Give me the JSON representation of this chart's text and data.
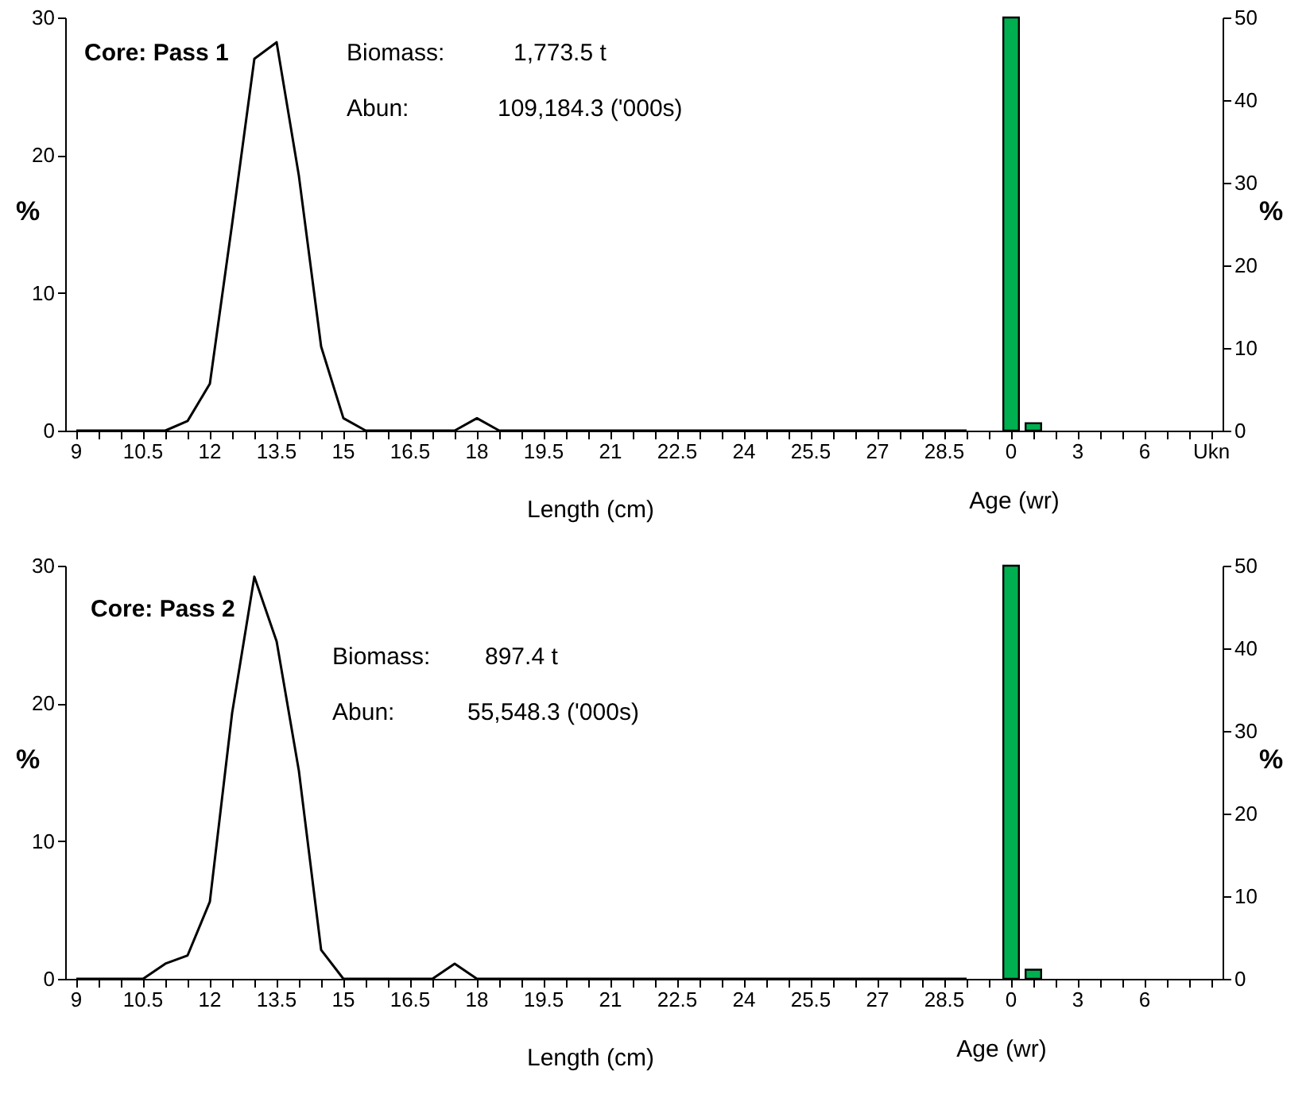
{
  "chart_data": [
    {
      "type": "line",
      "categories": [
        "9",
        null,
        null,
        "10.5",
        null,
        null,
        "12",
        null,
        null,
        "13.5",
        null,
        null,
        "15",
        null,
        null,
        "16.5",
        null,
        null,
        "18",
        null,
        null,
        "19.5",
        null,
        null,
        "21",
        null,
        null,
        "22.5",
        null,
        null,
        "24",
        null,
        null,
        "25.5",
        null,
        null,
        "27",
        null,
        null,
        "28.5",
        null,
        null,
        "0",
        null,
        null,
        "3",
        null,
        null,
        "6",
        null,
        null,
        "Ukn"
      ],
      "series": [
        {
          "color": "#000000",
          "values": [
            0,
            0,
            0,
            0,
            0,
            0.7,
            3.4,
            15,
            27,
            28.2,
            18.5,
            6.1,
            0.9,
            0,
            0,
            0,
            0,
            0,
            0.9,
            0,
            0,
            0,
            0,
            0,
            0,
            0,
            0,
            0,
            0,
            0,
            0,
            0,
            0,
            0,
            0,
            0,
            0,
            0,
            0,
            0,
            0,
            null,
            null,
            null,
            null,
            null,
            null,
            null,
            null,
            null,
            null,
            null
          ]
        },
        {
          "type": "bar",
          "axis": "y2",
          "color": "#00b050",
          "values": [
            null,
            null,
            null,
            null,
            null,
            null,
            null,
            null,
            null,
            null,
            null,
            null,
            null,
            null,
            null,
            null,
            null,
            null,
            null,
            null,
            null,
            null,
            null,
            null,
            null,
            null,
            null,
            null,
            null,
            null,
            null,
            null,
            null,
            null,
            null,
            null,
            null,
            null,
            null,
            null,
            null,
            null,
            50,
            0.9,
            null,
            null,
            null,
            null,
            null,
            null,
            null,
            null
          ]
        }
      ],
      "ylim": [
        0,
        30
      ],
      "yticks": [
        0,
        10,
        20,
        30
      ],
      "y2lim": [
        0,
        50
      ],
      "y2ticks": [
        0,
        10,
        20,
        30,
        40,
        50
      ],
      "ylabel": "%",
      "y2label": "%",
      "xlabel": "Length (cm)",
      "annotations": [
        "Core: Pass 1",
        "Biomass:",
        "1,773.5 t",
        "Abun:",
        "109,184.3 ('000s)",
        "Age (wr)"
      ]
    },
    {
      "type": "line",
      "categories": [
        "9",
        null,
        null,
        "10.5",
        null,
        null,
        "12",
        null,
        null,
        "13.5",
        null,
        null,
        "15",
        null,
        null,
        "16.5",
        null,
        null,
        "18",
        null,
        null,
        "19.5",
        null,
        null,
        "21",
        null,
        null,
        "22.5",
        null,
        null,
        "24",
        null,
        null,
        "25.5",
        null,
        null,
        "27",
        null,
        null,
        "28.5",
        null,
        null,
        "0",
        null,
        null,
        "3",
        null,
        null,
        "6",
        null,
        null,
        null
      ],
      "series": [
        {
          "color": "#000000",
          "values": [
            0,
            0,
            0,
            0,
            1.1,
            1.7,
            5.6,
            19.3,
            29.2,
            24.5,
            15.1,
            2.1,
            0,
            0,
            0,
            0,
            0,
            1.1,
            0,
            0,
            0,
            0,
            0,
            0,
            0,
            0,
            0,
            0,
            0,
            0,
            0,
            0,
            0,
            0,
            0,
            0,
            0,
            0,
            0,
            0,
            0,
            null,
            null,
            null,
            null,
            null,
            null,
            null,
            null,
            null,
            null,
            null
          ]
        },
        {
          "type": "bar",
          "axis": "y2",
          "color": "#00b050",
          "values": [
            null,
            null,
            null,
            null,
            null,
            null,
            null,
            null,
            null,
            null,
            null,
            null,
            null,
            null,
            null,
            null,
            null,
            null,
            null,
            null,
            null,
            null,
            null,
            null,
            null,
            null,
            null,
            null,
            null,
            null,
            null,
            null,
            null,
            null,
            null,
            null,
            null,
            null,
            null,
            null,
            null,
            null,
            50,
            1.1,
            null,
            null,
            null,
            null,
            null,
            null,
            null,
            null
          ]
        }
      ],
      "ylim": [
        0,
        30
      ],
      "yticks": [
        0,
        10,
        20,
        30
      ],
      "y2lim": [
        0,
        50
      ],
      "y2ticks": [
        0,
        10,
        20,
        30,
        40,
        50
      ],
      "ylabel": "%",
      "y2label": "%",
      "xlabel": "Length (cm)",
      "annotations": [
        "Core: Pass 2",
        "Biomass:",
        "897.4  t",
        "Abun:",
        "55,548.3 ('000s)",
        "Age (wr)"
      ]
    }
  ]
}
